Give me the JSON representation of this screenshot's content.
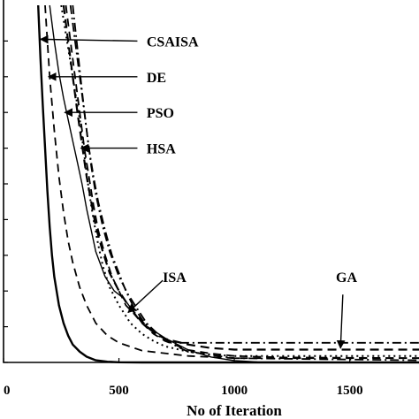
{
  "chart_data": {
    "type": "line",
    "title": "",
    "xlabel": "No of Iteration",
    "ylabel": "",
    "xlim": [
      0,
      1800
    ],
    "ylim": [
      0,
      1
    ],
    "x_ticks": [
      "0",
      "500",
      "1000",
      "1500"
    ],
    "y_tick_count": 10,
    "grid": false,
    "series": [
      {
        "name": "CSAISA",
        "style": "solid",
        "x": [
          150,
          160,
          170,
          180,
          190,
          200,
          210,
          220,
          240,
          260,
          280,
          300,
          330,
          360,
          400,
          450,
          500,
          600,
          800,
          1800
        ],
        "y": [
          1.0,
          0.85,
          0.72,
          0.6,
          0.48,
          0.38,
          0.3,
          0.24,
          0.16,
          0.11,
          0.075,
          0.05,
          0.03,
          0.016,
          0.006,
          0.002,
          0.0005,
          0.0,
          0.0,
          0.0
        ]
      },
      {
        "name": "DE",
        "style": "dash",
        "x": [
          180,
          200,
          220,
          240,
          260,
          280,
          300,
          330,
          360,
          400,
          450,
          500,
          600,
          800,
          1000,
          1800
        ],
        "y": [
          1.0,
          0.8,
          0.65,
          0.52,
          0.42,
          0.34,
          0.28,
          0.21,
          0.16,
          0.11,
          0.075,
          0.055,
          0.033,
          0.018,
          0.012,
          0.012
        ]
      },
      {
        "name": "PSO",
        "style": "solid-jagged",
        "x": [
          200,
          220,
          240,
          260,
          280,
          300,
          320,
          340,
          360,
          380,
          400,
          440,
          480,
          520,
          560,
          600,
          700,
          800,
          900,
          1000,
          1100,
          1800
        ],
        "y": [
          1.0,
          0.9,
          0.81,
          0.74,
          0.68,
          0.62,
          0.56,
          0.5,
          0.43,
          0.37,
          0.31,
          0.24,
          0.2,
          0.18,
          0.145,
          0.11,
          0.068,
          0.035,
          0.015,
          0.005,
          0.0015,
          0.0
        ]
      },
      {
        "name": "HSA",
        "style": "dash",
        "x": [
          270,
          290,
          310,
          330,
          350,
          370,
          390,
          410,
          440,
          470,
          500,
          530,
          560,
          600,
          650,
          700,
          800,
          900,
          1000,
          1200,
          1800
        ],
        "y": [
          1.0,
          0.9,
          0.8,
          0.7,
          0.6,
          0.52,
          0.44,
          0.37,
          0.3,
          0.24,
          0.2,
          0.16,
          0.14,
          0.11,
          0.08,
          0.06,
          0.035,
          0.025,
          0.018,
          0.014,
          0.012
        ]
      },
      {
        "name": "",
        "style": "dot",
        "x": [
          250,
          270,
          290,
          310,
          330,
          350,
          370,
          390,
          410,
          430,
          460,
          500,
          550,
          600,
          650,
          700,
          800,
          900,
          1000,
          1800
        ],
        "y": [
          1.0,
          0.92,
          0.84,
          0.76,
          0.68,
          0.58,
          0.48,
          0.4,
          0.33,
          0.27,
          0.21,
          0.16,
          0.11,
          0.08,
          0.06,
          0.045,
          0.03,
          0.022,
          0.018,
          0.018
        ]
      },
      {
        "name": "ISA",
        "style": "dash-bold",
        "x": [
          260,
          280,
          300,
          320,
          340,
          360,
          380,
          400,
          430,
          460,
          500,
          540,
          580,
          620,
          660,
          700,
          800,
          900,
          1000,
          1800
        ],
        "y": [
          1.0,
          0.9,
          0.8,
          0.7,
          0.61,
          0.52,
          0.45,
          0.38,
          0.31,
          0.25,
          0.2,
          0.16,
          0.13,
          0.1,
          0.08,
          0.066,
          0.05,
          0.04,
          0.036,
          0.036
        ]
      },
      {
        "name": "GA",
        "style": "dashdot",
        "x": [
          290,
          310,
          330,
          350,
          370,
          390,
          410,
          440,
          470,
          500,
          530,
          560,
          600,
          640,
          680,
          720,
          760,
          1800
        ],
        "y": [
          1.0,
          0.9,
          0.8,
          0.7,
          0.6,
          0.52,
          0.45,
          0.37,
          0.3,
          0.25,
          0.2,
          0.16,
          0.12,
          0.09,
          0.07,
          0.06,
          0.055,
          0.055
        ]
      },
      {
        "name": "",
        "style": "dashdot",
        "x": [
          300,
          320,
          340,
          360,
          380,
          400,
          430,
          460,
          500,
          540,
          580,
          620,
          660,
          700,
          750,
          800,
          1000,
          1800
        ],
        "y": [
          1.0,
          0.88,
          0.76,
          0.65,
          0.55,
          0.47,
          0.38,
          0.31,
          0.24,
          0.19,
          0.15,
          0.11,
          0.085,
          0.065,
          0.045,
          0.03,
          0.012,
          0.006
        ]
      }
    ],
    "annotations": [
      {
        "text": "CSAISA",
        "x": 620,
        "y": 0.9,
        "arrow_to": [
          160,
          0.905
        ],
        "arrow_from": [
          580,
          0.9
        ]
      },
      {
        "text": "DE",
        "x": 620,
        "y": 0.8,
        "arrow_to": [
          195,
          0.8
        ],
        "arrow_from": [
          580,
          0.8
        ]
      },
      {
        "text": "PSO",
        "x": 620,
        "y": 0.7,
        "arrow_to": [
          265,
          0.7
        ],
        "arrow_from": [
          580,
          0.7
        ]
      },
      {
        "text": "HSA",
        "x": 620,
        "y": 0.6,
        "arrow_to": [
          335,
          0.6
        ],
        "arrow_from": [
          580,
          0.6
        ]
      },
      {
        "text": "ISA",
        "x": 690,
        "y": 0.24,
        "arrow_to": [
          540,
          0.14
        ],
        "arrow_from": [
          690,
          0.23
        ]
      },
      {
        "text": "GA",
        "x": 1440,
        "y": 0.24,
        "arrow_to": [
          1460,
          0.04
        ],
        "arrow_from": [
          1470,
          0.19
        ]
      }
    ]
  }
}
